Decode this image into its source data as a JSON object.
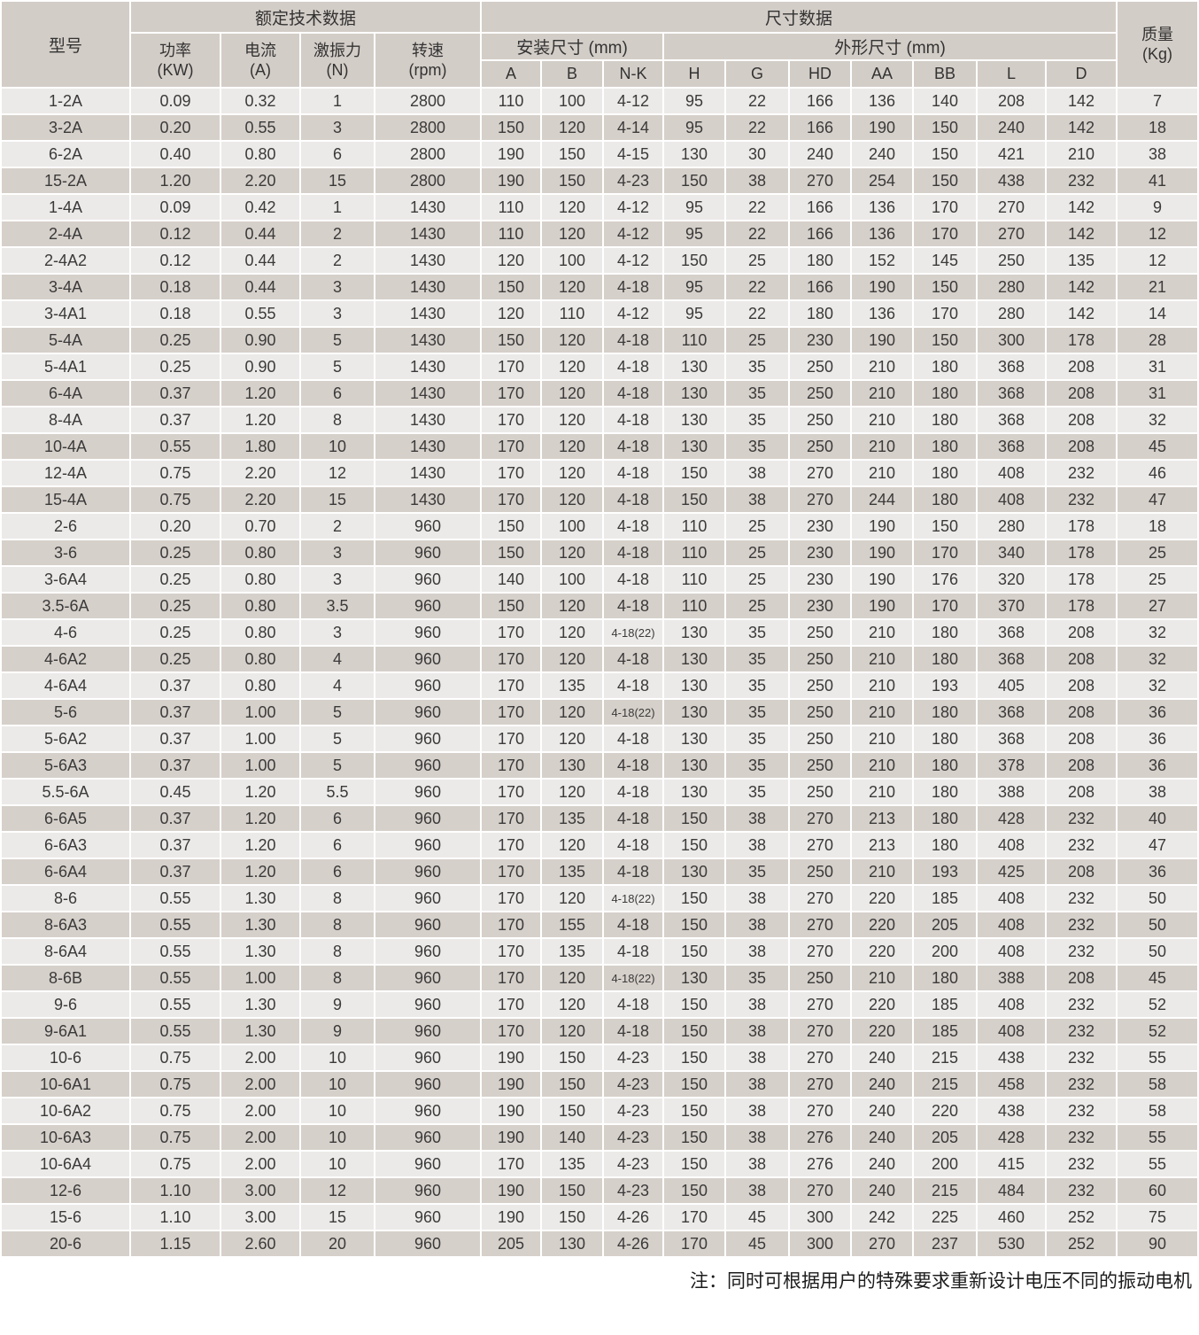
{
  "colors": {
    "header_bg": "#d3cdc7",
    "row_light": "#eceae8",
    "row_dark": "#d6d0ca",
    "gridline": "#ffffff"
  },
  "table": {
    "header": {
      "model": "型号",
      "rated_group": "额定技术数据",
      "dims_group": "尺寸数据",
      "mount_group": "安装尺寸 (mm)",
      "outline_group": "外形尺寸 (mm)",
      "weight_line1": "质量",
      "weight_line2": "(Kg)",
      "rated_cols": [
        {
          "name": "功率",
          "unit": "(KW)"
        },
        {
          "name": "电流",
          "unit": "(A)"
        },
        {
          "name": "激振力",
          "unit": "(N)"
        },
        {
          "name": "转速",
          "unit": "(rpm)"
        }
      ],
      "mount_cols": [
        "A",
        "B",
        "N-K"
      ],
      "outline_cols": [
        "H",
        "G",
        "HD",
        "AA",
        "BB",
        "L",
        "D"
      ]
    },
    "rows": [
      [
        "1-2A",
        "0.09",
        "0.32",
        "1",
        "2800",
        "110",
        "100",
        "4-12",
        "95",
        "22",
        "166",
        "136",
        "140",
        "208",
        "142",
        "7"
      ],
      [
        "3-2A",
        "0.20",
        "0.55",
        "3",
        "2800",
        "150",
        "120",
        "4-14",
        "95",
        "22",
        "166",
        "190",
        "150",
        "240",
        "142",
        "18"
      ],
      [
        "6-2A",
        "0.40",
        "0.80",
        "6",
        "2800",
        "190",
        "150",
        "4-15",
        "130",
        "30",
        "240",
        "240",
        "150",
        "421",
        "210",
        "38"
      ],
      [
        "15-2A",
        "1.20",
        "2.20",
        "15",
        "2800",
        "190",
        "150",
        "4-23",
        "150",
        "38",
        "270",
        "254",
        "150",
        "438",
        "232",
        "41"
      ],
      [
        "1-4A",
        "0.09",
        "0.42",
        "1",
        "1430",
        "110",
        "120",
        "4-12",
        "95",
        "22",
        "166",
        "136",
        "170",
        "270",
        "142",
        "9"
      ],
      [
        "2-4A",
        "0.12",
        "0.44",
        "2",
        "1430",
        "110",
        "120",
        "4-12",
        "95",
        "22",
        "166",
        "136",
        "170",
        "270",
        "142",
        "12"
      ],
      [
        "2-4A2",
        "0.12",
        "0.44",
        "2",
        "1430",
        "120",
        "100",
        "4-12",
        "150",
        "25",
        "180",
        "152",
        "145",
        "250",
        "135",
        "12"
      ],
      [
        "3-4A",
        "0.18",
        "0.44",
        "3",
        "1430",
        "150",
        "120",
        "4-18",
        "95",
        "22",
        "166",
        "190",
        "150",
        "280",
        "142",
        "21"
      ],
      [
        "3-4A1",
        "0.18",
        "0.55",
        "3",
        "1430",
        "120",
        "110",
        "4-12",
        "95",
        "22",
        "180",
        "136",
        "170",
        "280",
        "142",
        "14"
      ],
      [
        "5-4A",
        "0.25",
        "0.90",
        "5",
        "1430",
        "150",
        "120",
        "4-18",
        "110",
        "25",
        "230",
        "190",
        "150",
        "300",
        "178",
        "28"
      ],
      [
        "5-4A1",
        "0.25",
        "0.90",
        "5",
        "1430",
        "170",
        "120",
        "4-18",
        "130",
        "35",
        "250",
        "210",
        "180",
        "368",
        "208",
        "31"
      ],
      [
        "6-4A",
        "0.37",
        "1.20",
        "6",
        "1430",
        "170",
        "120",
        "4-18",
        "130",
        "35",
        "250",
        "210",
        "180",
        "368",
        "208",
        "31"
      ],
      [
        "8-4A",
        "0.37",
        "1.20",
        "8",
        "1430",
        "170",
        "120",
        "4-18",
        "130",
        "35",
        "250",
        "210",
        "180",
        "368",
        "208",
        "32"
      ],
      [
        "10-4A",
        "0.55",
        "1.80",
        "10",
        "1430",
        "170",
        "120",
        "4-18",
        "130",
        "35",
        "250",
        "210",
        "180",
        "368",
        "208",
        "45"
      ],
      [
        "12-4A",
        "0.75",
        "2.20",
        "12",
        "1430",
        "170",
        "120",
        "4-18",
        "150",
        "38",
        "270",
        "210",
        "180",
        "408",
        "232",
        "46"
      ],
      [
        "15-4A",
        "0.75",
        "2.20",
        "15",
        "1430",
        "170",
        "120",
        "4-18",
        "150",
        "38",
        "270",
        "244",
        "180",
        "408",
        "232",
        "47"
      ],
      [
        "2-6",
        "0.20",
        "0.70",
        "2",
        "960",
        "150",
        "100",
        "4-18",
        "110",
        "25",
        "230",
        "190",
        "150",
        "280",
        "178",
        "18"
      ],
      [
        "3-6",
        "0.25",
        "0.80",
        "3",
        "960",
        "150",
        "120",
        "4-18",
        "110",
        "25",
        "230",
        "190",
        "170",
        "340",
        "178",
        "25"
      ],
      [
        "3-6A4",
        "0.25",
        "0.80",
        "3",
        "960",
        "140",
        "100",
        "4-18",
        "110",
        "25",
        "230",
        "190",
        "176",
        "320",
        "178",
        "25"
      ],
      [
        "3.5-6A",
        "0.25",
        "0.80",
        "3.5",
        "960",
        "150",
        "120",
        "4-18",
        "110",
        "25",
        "230",
        "190",
        "170",
        "370",
        "178",
        "27"
      ],
      [
        "4-6",
        "0.25",
        "0.80",
        "3",
        "960",
        "170",
        "120",
        "4-18(22)",
        "130",
        "35",
        "250",
        "210",
        "180",
        "368",
        "208",
        "32"
      ],
      [
        "4-6A2",
        "0.25",
        "0.80",
        "4",
        "960",
        "170",
        "120",
        "4-18",
        "130",
        "35",
        "250",
        "210",
        "180",
        "368",
        "208",
        "32"
      ],
      [
        "4-6A4",
        "0.37",
        "0.80",
        "4",
        "960",
        "170",
        "135",
        "4-18",
        "130",
        "35",
        "250",
        "210",
        "193",
        "405",
        "208",
        "32"
      ],
      [
        "5-6",
        "0.37",
        "1.00",
        "5",
        "960",
        "170",
        "120",
        "4-18(22)",
        "130",
        "35",
        "250",
        "210",
        "180",
        "368",
        "208",
        "36"
      ],
      [
        "5-6A2",
        "0.37",
        "1.00",
        "5",
        "960",
        "170",
        "120",
        "4-18",
        "130",
        "35",
        "250",
        "210",
        "180",
        "368",
        "208",
        "36"
      ],
      [
        "5-6A3",
        "0.37",
        "1.00",
        "5",
        "960",
        "170",
        "130",
        "4-18",
        "130",
        "35",
        "250",
        "210",
        "180",
        "378",
        "208",
        "36"
      ],
      [
        "5.5-6A",
        "0.45",
        "1.20",
        "5.5",
        "960",
        "170",
        "120",
        "4-18",
        "130",
        "35",
        "250",
        "210",
        "180",
        "388",
        "208",
        "38"
      ],
      [
        "6-6A5",
        "0.37",
        "1.20",
        "6",
        "960",
        "170",
        "135",
        "4-18",
        "150",
        "38",
        "270",
        "213",
        "180",
        "428",
        "232",
        "40"
      ],
      [
        "6-6A3",
        "0.37",
        "1.20",
        "6",
        "960",
        "170",
        "120",
        "4-18",
        "150",
        "38",
        "270",
        "213",
        "180",
        "408",
        "232",
        "47"
      ],
      [
        "6-6A4",
        "0.37",
        "1.20",
        "6",
        "960",
        "170",
        "135",
        "4-18",
        "130",
        "35",
        "250",
        "210",
        "193",
        "425",
        "208",
        "36"
      ],
      [
        "8-6",
        "0.55",
        "1.30",
        "8",
        "960",
        "170",
        "120",
        "4-18(22)",
        "150",
        "38",
        "270",
        "220",
        "185",
        "408",
        "232",
        "50"
      ],
      [
        "8-6A3",
        "0.55",
        "1.30",
        "8",
        "960",
        "170",
        "155",
        "4-18",
        "150",
        "38",
        "270",
        "220",
        "205",
        "408",
        "232",
        "50"
      ],
      [
        "8-6A4",
        "0.55",
        "1.30",
        "8",
        "960",
        "170",
        "135",
        "4-18",
        "150",
        "38",
        "270",
        "220",
        "200",
        "408",
        "232",
        "50"
      ],
      [
        "8-6B",
        "0.55",
        "1.00",
        "8",
        "960",
        "170",
        "120",
        "4-18(22)",
        "130",
        "35",
        "250",
        "210",
        "180",
        "388",
        "208",
        "45"
      ],
      [
        "9-6",
        "0.55",
        "1.30",
        "9",
        "960",
        "170",
        "120",
        "4-18",
        "150",
        "38",
        "270",
        "220",
        "185",
        "408",
        "232",
        "52"
      ],
      [
        "9-6A1",
        "0.55",
        "1.30",
        "9",
        "960",
        "170",
        "120",
        "4-18",
        "150",
        "38",
        "270",
        "220",
        "185",
        "408",
        "232",
        "52"
      ],
      [
        "10-6",
        "0.75",
        "2.00",
        "10",
        "960",
        "190",
        "150",
        "4-23",
        "150",
        "38",
        "270",
        "240",
        "215",
        "438",
        "232",
        "55"
      ],
      [
        "10-6A1",
        "0.75",
        "2.00",
        "10",
        "960",
        "190",
        "150",
        "4-23",
        "150",
        "38",
        "270",
        "240",
        "215",
        "458",
        "232",
        "58"
      ],
      [
        "10-6A2",
        "0.75",
        "2.00",
        "10",
        "960",
        "190",
        "150",
        "4-23",
        "150",
        "38",
        "270",
        "240",
        "220",
        "438",
        "232",
        "58"
      ],
      [
        "10-6A3",
        "0.75",
        "2.00",
        "10",
        "960",
        "190",
        "140",
        "4-23",
        "150",
        "38",
        "276",
        "240",
        "205",
        "428",
        "232",
        "55"
      ],
      [
        "10-6A4",
        "0.75",
        "2.00",
        "10",
        "960",
        "170",
        "135",
        "4-23",
        "150",
        "38",
        "276",
        "240",
        "200",
        "415",
        "232",
        "55"
      ],
      [
        "12-6",
        "1.10",
        "3.00",
        "12",
        "960",
        "190",
        "150",
        "4-23",
        "150",
        "38",
        "270",
        "240",
        "215",
        "484",
        "232",
        "60"
      ],
      [
        "15-6",
        "1.10",
        "3.00",
        "15",
        "960",
        "190",
        "150",
        "4-26",
        "170",
        "45",
        "300",
        "242",
        "225",
        "460",
        "252",
        "75"
      ],
      [
        "20-6",
        "1.15",
        "2.60",
        "20",
        "960",
        "205",
        "130",
        "4-26",
        "170",
        "45",
        "300",
        "270",
        "237",
        "530",
        "252",
        "90"
      ]
    ],
    "note": "注：同时可根据用户的特殊要求重新设计电压不同的振动电机"
  }
}
